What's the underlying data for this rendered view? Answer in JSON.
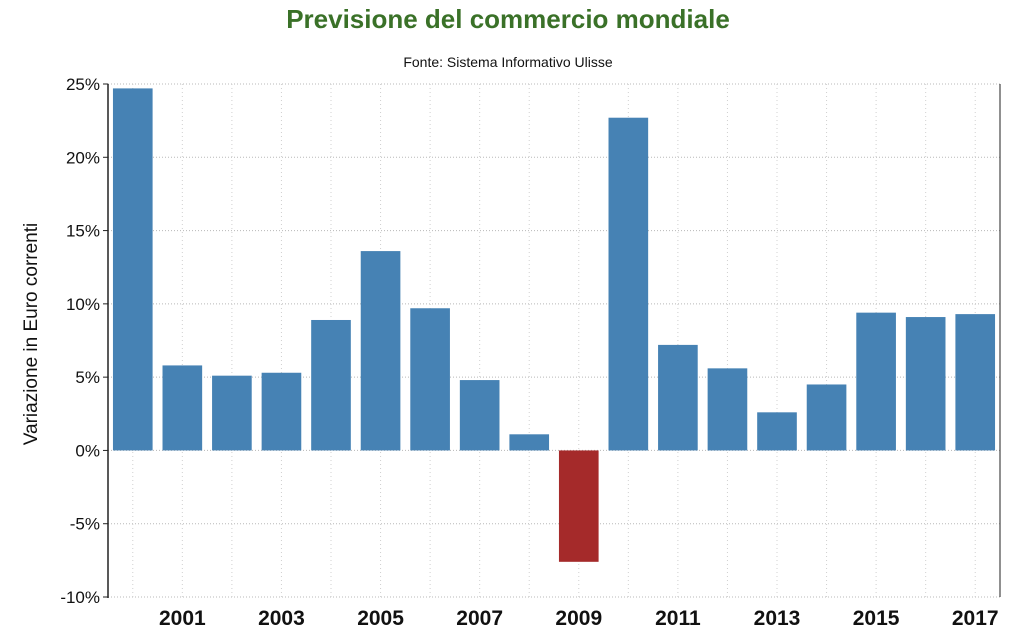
{
  "chart_data": {
    "type": "bar",
    "title": "Previsione del commercio mondiale",
    "subtitle": "Fonte: Sistema Informativo Ulisse",
    "ylabel": "Variazione in Euro correnti",
    "xlabel": "",
    "categories": [
      "2000",
      "2001",
      "2002",
      "2003",
      "2004",
      "2005",
      "2006",
      "2007",
      "2008",
      "2009",
      "2010",
      "2011",
      "2012",
      "2013",
      "2014",
      "2015",
      "2016",
      "2017"
    ],
    "x_tick_labels": [
      "2001",
      "2003",
      "2005",
      "2007",
      "2009",
      "2011",
      "2013",
      "2015",
      "2017"
    ],
    "values": [
      24.7,
      5.8,
      5.1,
      5.3,
      8.9,
      13.6,
      9.7,
      4.8,
      1.1,
      -7.6,
      22.7,
      7.2,
      5.6,
      2.6,
      4.5,
      9.4,
      9.1,
      9.3
    ],
    "ylim": [
      -10,
      25
    ],
    "y_tick_labels": [
      "25%",
      "20%",
      "15%",
      "10%",
      "5%",
      "0%",
      "-5%",
      "-10%"
    ],
    "y_tick_values": [
      25,
      20,
      15,
      10,
      5,
      0,
      -5,
      -10
    ],
    "grid": true,
    "colors": {
      "positive": "#4682b4",
      "negative": "#a52a2a",
      "title": "#3a7128"
    }
  }
}
